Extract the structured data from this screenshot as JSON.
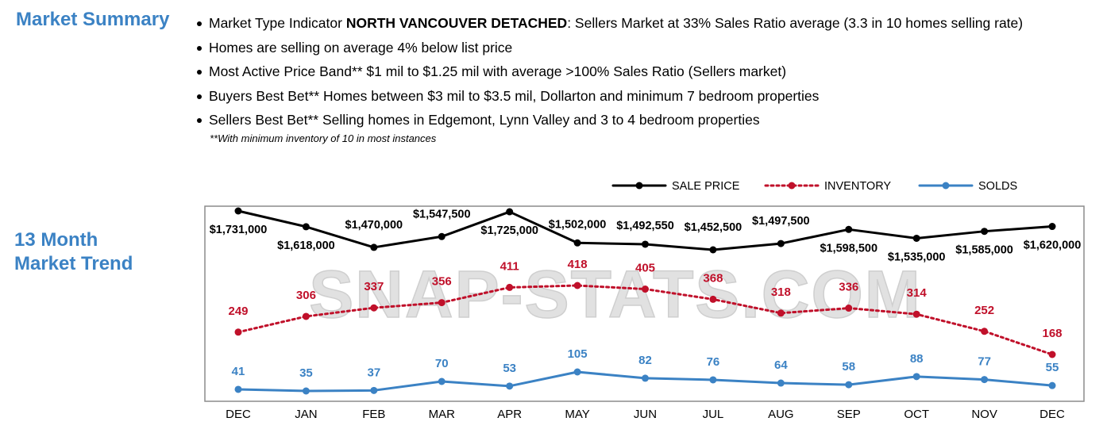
{
  "summary": {
    "title": "Market Summary",
    "bullets": [
      {
        "pre": "Market Type Indicator ",
        "bold": "NORTH VANCOUVER DETACHED",
        "post": ": Sellers Market at 33% Sales Ratio average (3.3 in 10 homes selling rate)"
      },
      {
        "pre": "Homes are selling on average 4% below list price",
        "bold": "",
        "post": ""
      },
      {
        "pre": "Most Active Price Band** $1 mil to $1.25 mil with average >100% Sales Ratio (Sellers market)",
        "bold": "",
        "post": ""
      },
      {
        "pre": "Buyers Best Bet** Homes between $3 mil to $3.5 mil, Dollarton and minimum 7 bedroom properties",
        "bold": "",
        "post": ""
      },
      {
        "pre": "Sellers Best Bet** Selling homes in Edgemont, Lynn Valley and 3 to 4 bedroom properties",
        "bold": "",
        "post": ""
      }
    ],
    "footnote": "**With minimum inventory of 10 in most instances"
  },
  "trend": {
    "title_line1": "13 Month",
    "title_line2": "Market Trend"
  },
  "watermark": "SNAP-STATS.COM",
  "chart_data": {
    "type": "line",
    "categories": [
      "DEC",
      "JAN",
      "FEB",
      "MAR",
      "APR",
      "MAY",
      "JUN",
      "JUL",
      "AUG",
      "SEP",
      "OCT",
      "NOV",
      "DEC"
    ],
    "legend_placement": "top-right",
    "series": [
      {
        "name": "SALE PRICE",
        "color": "#000000",
        "line_style": "solid",
        "values": [
          1731000,
          1618000,
          1470000,
          1547500,
          1725000,
          1502000,
          1492550,
          1452500,
          1497500,
          1598500,
          1535000,
          1585000,
          1620000
        ],
        "labels": [
          "$1,731,000",
          "$1,618,000",
          "$1,470,000",
          "$1,547,500",
          "$1,725,000",
          "$1,502,000",
          "$1,492,550",
          "$1,452,500",
          "$1,497,500",
          "$1,598,500",
          "$1,535,000",
          "$1,585,000",
          "$1,620,000"
        ]
      },
      {
        "name": "INVENTORY",
        "color": "#c0102a",
        "line_style": "dotted",
        "values": [
          249,
          306,
          337,
          356,
          411,
          418,
          405,
          368,
          318,
          336,
          314,
          252,
          168
        ]
      },
      {
        "name": "SOLDS",
        "color": "#3b82c4",
        "line_style": "solid",
        "values": [
          41,
          35,
          37,
          70,
          53,
          105,
          82,
          76,
          64,
          58,
          88,
          77,
          55
        ]
      }
    ]
  }
}
